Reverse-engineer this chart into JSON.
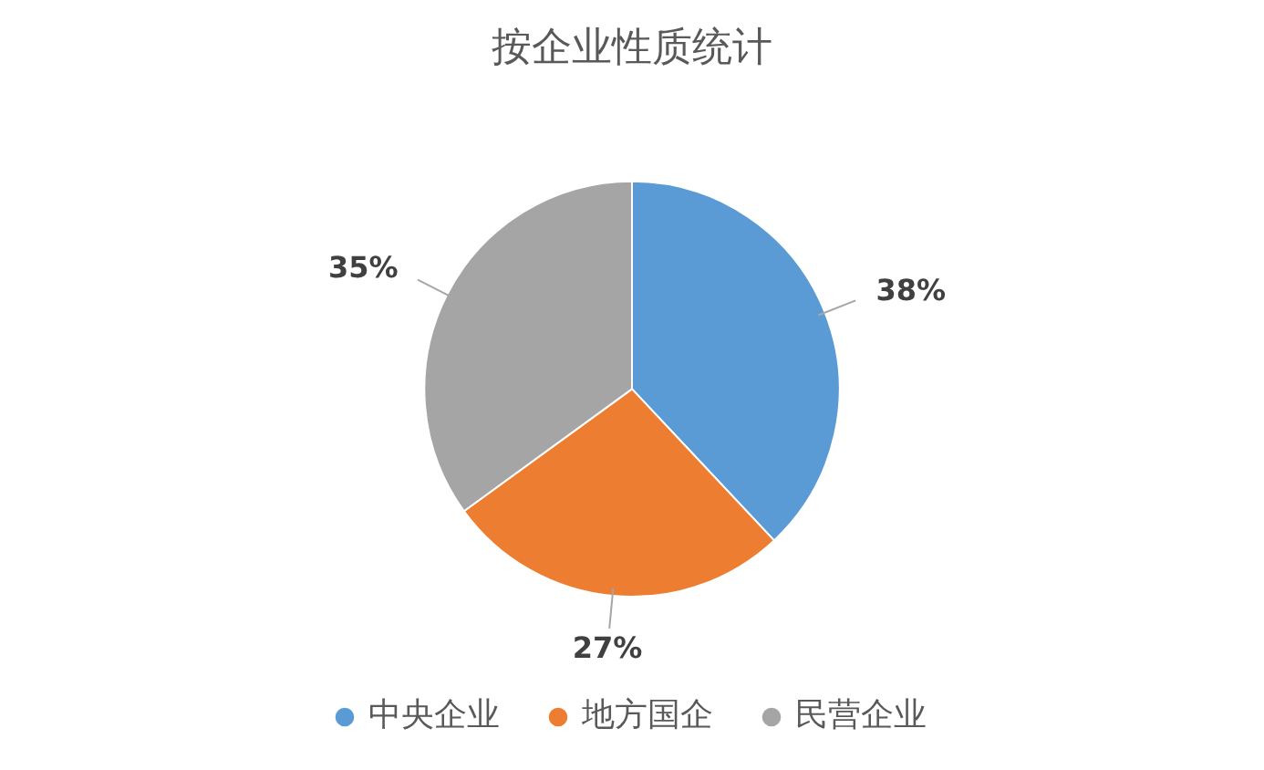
{
  "chart_data": {
    "type": "pie",
    "title": "按企业性质统计",
    "categories": [
      "中央企业",
      "地方国企",
      "民营企业"
    ],
    "values": [
      38,
      27,
      35
    ],
    "value_labels": [
      "38%",
      "27%",
      "35%"
    ],
    "colors": [
      "#5b9bd5",
      "#ed7d31",
      "#a5a5a5"
    ],
    "legend": "bottom"
  }
}
